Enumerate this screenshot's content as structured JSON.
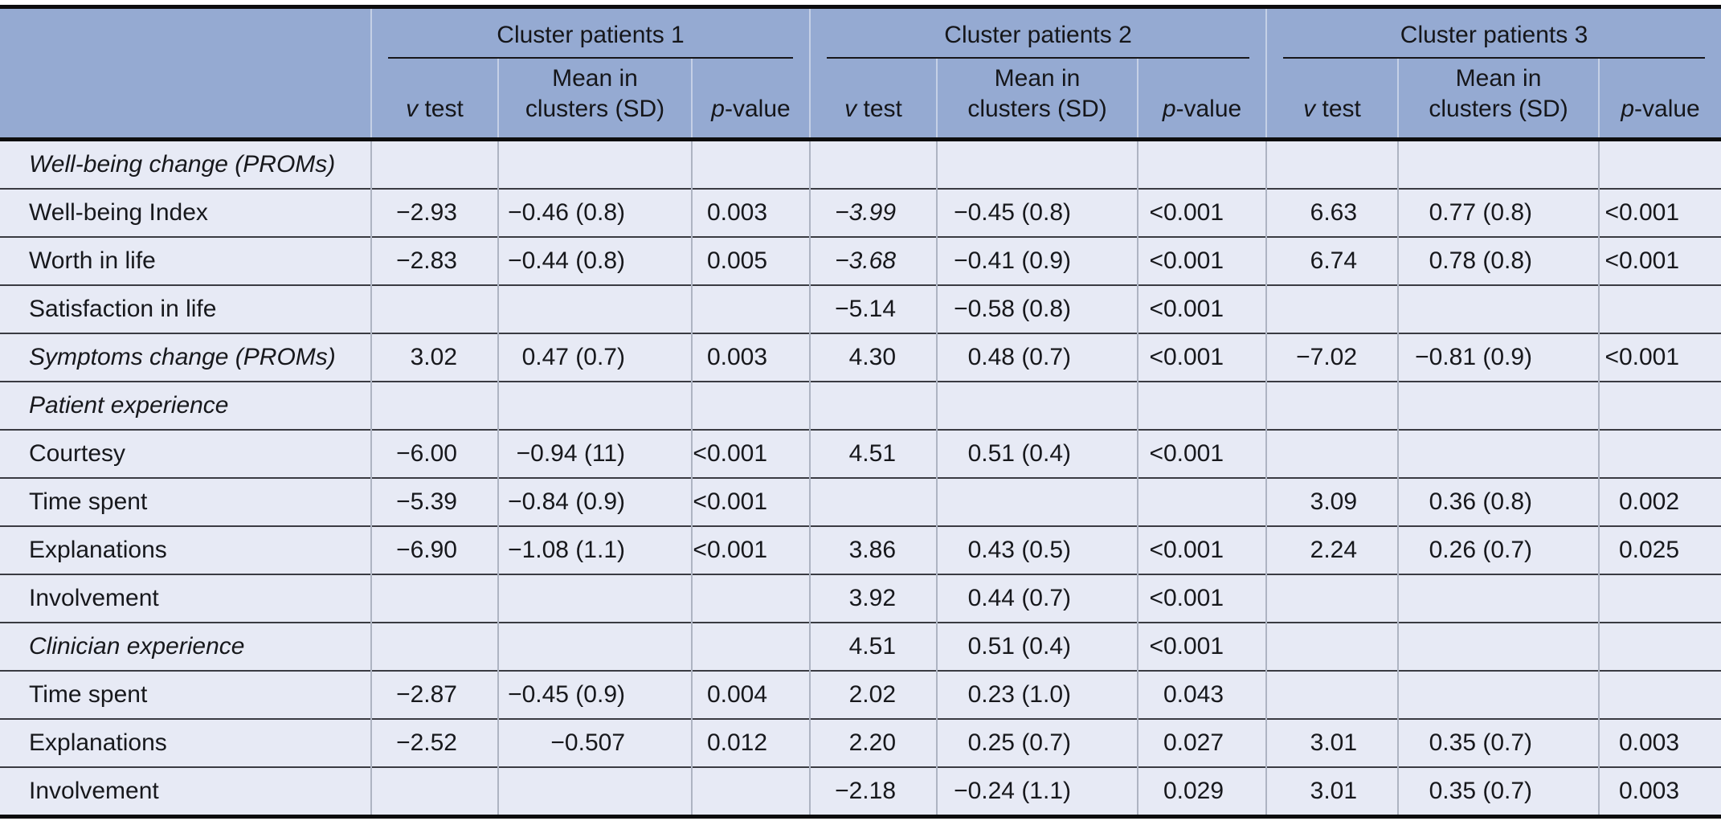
{
  "colors": {
    "header_bg": "#95aad2",
    "row_bg": "#e7eaf5",
    "rule_dark": "#0d0d0e",
    "row_separator": "#3a3b42",
    "column_divider": "#aeb4c2"
  },
  "table": {
    "groups": [
      "Cluster patients 1",
      "Cluster patients 2",
      "Cluster patients 3"
    ],
    "subheader": {
      "v_italic": "v",
      "v_rest": " test",
      "mean_line1": "Mean in",
      "mean_line2": "clusters (SD)",
      "p_italic": "p",
      "p_rest": "-value"
    },
    "columns_per_group": [
      "v test",
      "Mean in clusters (SD)",
      "p-value"
    ],
    "rows": [
      {
        "label": "Well-being change (PROMs)",
        "label_italic": true,
        "cells": [
          "",
          "",
          "",
          "",
          "",
          "",
          "",
          "",
          ""
        ]
      },
      {
        "label": "Well-being Index",
        "cells": [
          "−2.93",
          "−0.46 (0.8)",
          "0.003",
          "−3.99",
          "−0.45 (0.8)",
          "<0.001",
          "6.63",
          "0.77 (0.8)",
          "<0.001"
        ],
        "italic_cells": [
          3
        ]
      },
      {
        "label": "Worth in life",
        "cells": [
          "−2.83",
          "−0.44 (0.8)",
          "0.005",
          "−3.68",
          "−0.41 (0.9)",
          "<0.001",
          "6.74",
          "0.78 (0.8)",
          "<0.001"
        ],
        "italic_cells": [
          3
        ]
      },
      {
        "label": "Satisfaction in life",
        "cells": [
          "",
          "",
          "",
          "−5.14",
          "−0.58 (0.8)",
          "<0.001",
          "",
          "",
          ""
        ]
      },
      {
        "label": "Symptoms change (PROMs)",
        "label_italic": true,
        "cells": [
          "3.02",
          "0.47 (0.7)",
          "0.003",
          "4.30",
          "0.48 (0.7)",
          "<0.001",
          "−7.02",
          "−0.81 (0.9)",
          "<0.001"
        ]
      },
      {
        "label": "Patient experience",
        "label_italic": true,
        "cells": [
          "",
          "",
          "",
          "",
          "",
          "",
          "",
          "",
          ""
        ]
      },
      {
        "label": "Courtesy",
        "cells": [
          "−6.00",
          "−0.94 (11)",
          "<0.001",
          "4.51",
          "0.51 (0.4)",
          "<0.001",
          "",
          "",
          ""
        ]
      },
      {
        "label": "Time spent",
        "cells": [
          "−5.39",
          "−0.84 (0.9)",
          "<0.001",
          "",
          "",
          "",
          "3.09",
          "0.36 (0.8)",
          "0.002"
        ]
      },
      {
        "label": "Explanations",
        "cells": [
          "−6.90",
          "−1.08 (1.1)",
          "<0.001",
          "3.86",
          "0.43 (0.5)",
          "<0.001",
          "2.24",
          "0.26 (0.7)",
          "0.025"
        ]
      },
      {
        "label": "Involvement",
        "cells": [
          "",
          "",
          "",
          "3.92",
          "0.44 (0.7)",
          "<0.001",
          "",
          "",
          ""
        ]
      },
      {
        "label": "Clinician experience",
        "label_italic": true,
        "cells": [
          "",
          "",
          "",
          "4.51",
          "0.51 (0.4)",
          "<0.001",
          "",
          "",
          ""
        ]
      },
      {
        "label": "Time spent",
        "cells": [
          "−2.87",
          "−0.45 (0.9)",
          "0.004",
          "2.02",
          "0.23 (1.0)",
          "0.043",
          "",
          "",
          ""
        ]
      },
      {
        "label": "Explanations",
        "cells": [
          "−2.52",
          "−0.507",
          "0.012",
          "2.20",
          "0.25 (0.7)",
          "0.027",
          "3.01",
          "0.35 (0.7)",
          "0.003"
        ]
      },
      {
        "label": "Involvement",
        "cells": [
          "",
          "",
          "",
          "−2.18",
          "−0.24 (1.1)",
          "0.029",
          "3.01",
          "0.35 (0.7)",
          "0.003"
        ]
      }
    ]
  }
}
